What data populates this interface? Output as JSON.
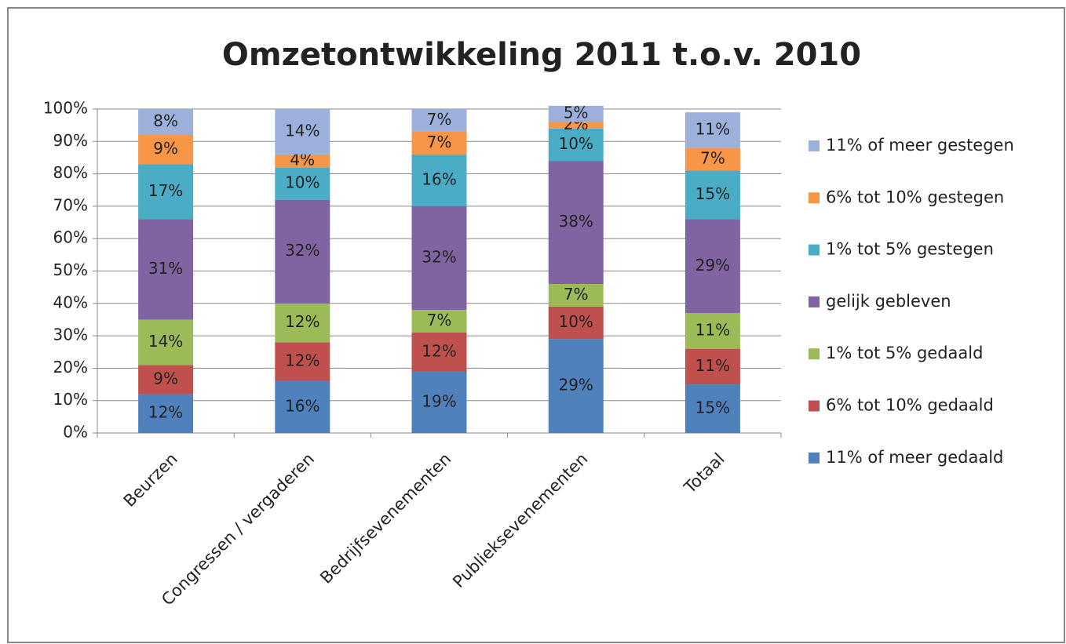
{
  "chart_data": {
    "type": "stacked_bar",
    "title": "Omzetontwikkeling 2011 t.o.v. 2010",
    "categories": [
      "Beurzen",
      "Congressen / vergaderen",
      "Bedrijfsevenementen",
      "Publieksevenementen",
      "Totaal"
    ],
    "ylim": [
      0,
      100
    ],
    "yticks": [
      {
        "value": 0,
        "label": "0%"
      },
      {
        "value": 10,
        "label": "10%"
      },
      {
        "value": 20,
        "label": "20%"
      },
      {
        "value": 30,
        "label": "30%"
      },
      {
        "value": 40,
        "label": "40%"
      },
      {
        "value": 50,
        "label": "50%"
      },
      {
        "value": 60,
        "label": "60%"
      },
      {
        "value": 70,
        "label": "70%"
      },
      {
        "value": 80,
        "label": "80%"
      },
      {
        "value": 90,
        "label": "90%"
      },
      {
        "value": 100,
        "label": "100%"
      }
    ],
    "grid": true,
    "legend": "right",
    "series": [
      {
        "name": "11% of meer gedaald",
        "color": "#4f81bd",
        "values": [
          12,
          16,
          19,
          29,
          15
        ],
        "value_labels": [
          "12%",
          "16%",
          "19%",
          "29%",
          "15%"
        ]
      },
      {
        "name": "6% tot 10% gedaald",
        "color": "#c0504d",
        "values": [
          9,
          12,
          12,
          10,
          11
        ],
        "value_labels": [
          "9%",
          "12%",
          "12%",
          "10%",
          "11%"
        ]
      },
      {
        "name": "1% tot 5% gedaald",
        "color": "#9bbb59",
        "values": [
          14,
          12,
          7,
          7,
          11
        ],
        "value_labels": [
          "14%",
          "12%",
          "7%",
          "7%",
          "11%"
        ]
      },
      {
        "name": "gelijk gebleven",
        "color": "#8064a2",
        "values": [
          31,
          32,
          32,
          38,
          29
        ],
        "value_labels": [
          "31%",
          "32%",
          "32%",
          "38%",
          "29%"
        ]
      },
      {
        "name": "1% tot 5% gestegen",
        "color": "#4bacc6",
        "values": [
          17,
          10,
          16,
          10,
          15
        ],
        "value_labels": [
          "17%",
          "10%",
          "16%",
          "10%",
          "15%"
        ]
      },
      {
        "name": "6% tot 10% gestegen",
        "color": "#f79646",
        "values": [
          9,
          4,
          7,
          2,
          7
        ],
        "value_labels": [
          "9%",
          "4%",
          "7%",
          "2%",
          "7%"
        ]
      },
      {
        "name": "11% of meer gestegen",
        "color": "#9bb1dc",
        "values": [
          8,
          14,
          7,
          5,
          11
        ],
        "value_labels": [
          "8%",
          "14%",
          "7%",
          "5%",
          "11%"
        ]
      }
    ]
  }
}
